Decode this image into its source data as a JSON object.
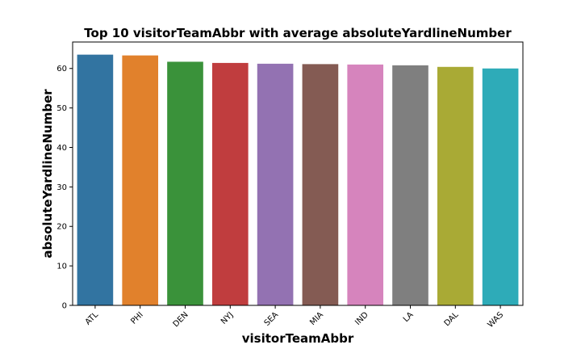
{
  "chart_data": {
    "type": "bar",
    "title": "Top 10 visitorTeamAbbr with average absoluteYardlineNumber",
    "xlabel": "visitorTeamAbbr",
    "ylabel": "absoluteYardlineNumber",
    "categories": [
      "ATL",
      "PHI",
      "DEN",
      "NYJ",
      "SEA",
      "MIA",
      "IND",
      "LA",
      "DAL",
      "WAS"
    ],
    "values": [
      63.5,
      63.3,
      61.7,
      61.4,
      61.2,
      61.1,
      61.0,
      60.8,
      60.4,
      60.0
    ],
    "colors": [
      "#3274a1",
      "#e1812c",
      "#3a923a",
      "#c03d3e",
      "#9372b2",
      "#845b53",
      "#d684bd",
      "#7f7f7f",
      "#a9aa35",
      "#2eabb8"
    ],
    "ylim": [
      0,
      66.7
    ],
    "yticks": [
      "0",
      "10",
      "20",
      "30",
      "40",
      "50",
      "60"
    ],
    "grid": false,
    "legend": "none"
  }
}
